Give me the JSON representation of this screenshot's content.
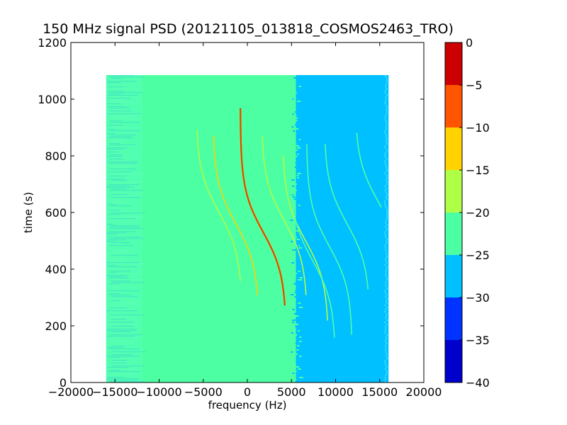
{
  "chart_data": {
    "type": "heatmap",
    "title": "150 MHz signal PSD (20121105_013818_COSMOS2463_TRO)",
    "xlabel": "frequency (Hz)",
    "ylabel": "time (s)",
    "xlim": [
      -20000,
      20000
    ],
    "ylim": [
      0,
      1200
    ],
    "x_ticks": [
      "−20000",
      "−15000",
      "−10000",
      "−5000",
      "0",
      "5000",
      "10000",
      "15000",
      "20000"
    ],
    "x_tick_values": [
      -20000,
      -15000,
      -10000,
      -5000,
      0,
      5000,
      10000,
      15000,
      20000
    ],
    "y_ticks": [
      "0",
      "200",
      "400",
      "600",
      "800",
      "1000",
      "1200"
    ],
    "y_tick_values": [
      0,
      200,
      400,
      600,
      800,
      1000,
      1200
    ],
    "data_extent": {
      "x": [
        -16000,
        16000
      ],
      "y": [
        0,
        1085
      ]
    },
    "background_regions": [
      {
        "x": [
          -16000,
          -12000
        ],
        "level": -22,
        "color": "#50ffb0",
        "noisy": true
      },
      {
        "x": [
          -12000,
          5500
        ],
        "level": -22,
        "color": "#4dffa3"
      },
      {
        "x": [
          5500,
          16000
        ],
        "level": -27,
        "color": "#00c0ff"
      }
    ],
    "colorbar": {
      "range": [
        -40,
        0
      ],
      "ticks": [
        "0",
        "−5",
        "−10",
        "−15",
        "−20",
        "−25",
        "−30",
        "−35",
        "−40"
      ],
      "tick_values": [
        0,
        -5,
        -10,
        -15,
        -20,
        -25,
        -30,
        -35,
        -40
      ],
      "levels": [
        {
          "from": -40,
          "to": -35,
          "color": "#0000cd"
        },
        {
          "from": -35,
          "to": -30,
          "color": "#0033ff"
        },
        {
          "from": -30,
          "to": -25,
          "color": "#00c0ff"
        },
        {
          "from": -25,
          "to": -20,
          "color": "#4dffa3"
        },
        {
          "from": -20,
          "to": -15,
          "color": "#b0ff47"
        },
        {
          "from": -15,
          "to": -10,
          "color": "#ffd200"
        },
        {
          "from": -10,
          "to": -5,
          "color": "#ff5500"
        },
        {
          "from": -5,
          "to": 0,
          "color": "#cc0000"
        }
      ]
    },
    "series": [
      {
        "center": 1800,
        "t_mid": 530,
        "t_start": 965,
        "t_end": 275,
        "color": "#cc0000"
      },
      {
        "center": 4200,
        "t_mid": 570,
        "t_start": 870,
        "t_end": 310,
        "color": "#b0ff47"
      },
      {
        "center": -1300,
        "t_mid": 560,
        "t_start": 870,
        "t_end": 310,
        "color": "#ffd200"
      },
      {
        "center": -3200,
        "t_mid": 600,
        "t_start": 890,
        "t_end": 360,
        "color": "#b0ff47"
      },
      {
        "center": 6600,
        "t_mid": 500,
        "t_start": 800,
        "t_end": 220,
        "color": "#b0ff47"
      },
      {
        "center": 7400,
        "t_mid": 430,
        "t_start": 840,
        "t_end": 160,
        "color": "#4dffa3"
      },
      {
        "center": 9300,
        "t_mid": 480,
        "t_start": 840,
        "t_end": 170,
        "color": "#4dffa3"
      },
      {
        "center": 11300,
        "t_mid": 560,
        "t_start": 840,
        "t_end": 330,
        "color": "#4dffa3"
      },
      {
        "center": 14800,
        "t_mid": 640,
        "t_start": 880,
        "t_end": 620,
        "color": "#4dffa3"
      }
    ]
  }
}
